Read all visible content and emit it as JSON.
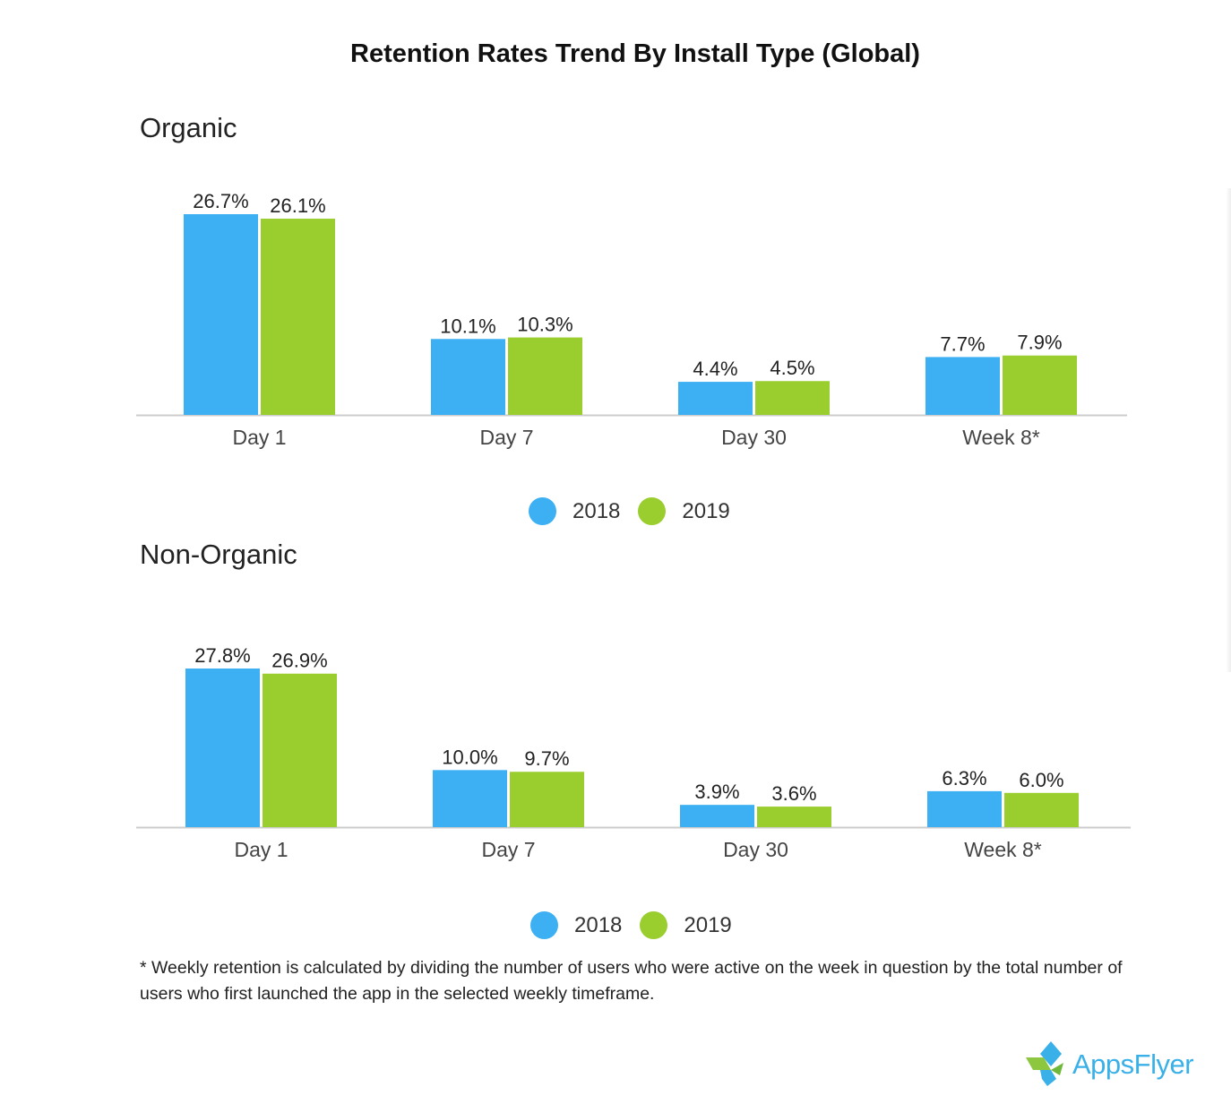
{
  "title": "Retention Rates Trend By Install Type (Global)",
  "colors": {
    "2018": "#3cb0f3",
    "2019": "#9acd2e"
  },
  "chart_data": [
    {
      "type": "bar",
      "title": "Organic",
      "categories": [
        "Day 1",
        "Day 7",
        "Day 30",
        "Week 8*"
      ],
      "series": [
        {
          "name": "2018",
          "values": [
            26.7,
            10.1,
            4.4,
            7.7
          ],
          "labels": [
            "26.7%",
            "10.1%",
            "4.4%",
            "7.7%"
          ]
        },
        {
          "name": "2019",
          "values": [
            26.1,
            10.3,
            4.5,
            7.9
          ],
          "labels": [
            "26.1%",
            "10.3%",
            "4.5%",
            "7.9%"
          ]
        }
      ],
      "ylim": [
        0,
        26.7
      ],
      "legend": "bottom-center"
    },
    {
      "type": "bar",
      "title": "Non-Organic",
      "categories": [
        "Day 1",
        "Day 7",
        "Day 30",
        "Week 8*"
      ],
      "series": [
        {
          "name": "2018",
          "values": [
            27.8,
            10.0,
            3.9,
            6.3
          ],
          "labels": [
            "27.8%",
            "10.0%",
            "3.9%",
            "6.3%"
          ]
        },
        {
          "name": "2019",
          "values": [
            26.9,
            9.7,
            3.6,
            6.0
          ],
          "labels": [
            "26.9%",
            "9.7%",
            "3.6%",
            "6.0%"
          ]
        }
      ],
      "ylim": [
        0,
        27.8
      ],
      "legend": "bottom-center"
    }
  ],
  "legend": {
    "label_2018": "2018",
    "label_2019": "2019"
  },
  "footnote": "* Weekly retention is calculated by dividing the number of users who were active on the week in question by the total number of users who first launched the app in the selected weekly timeframe.",
  "logo": {
    "text": "AppsFlyer",
    "icon": "appsflyer-logo-icon"
  }
}
